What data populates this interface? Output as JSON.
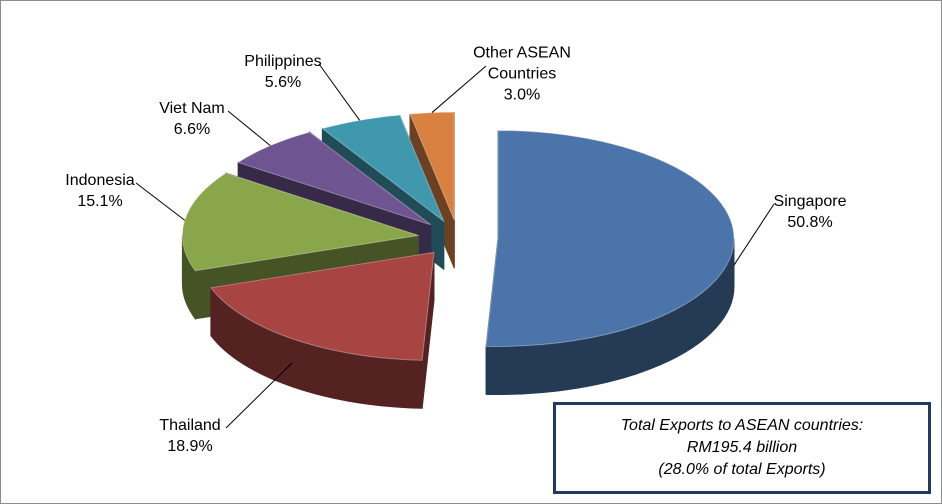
{
  "chart_data": {
    "type": "pie",
    "categories": [
      "Singapore",
      "Thailand",
      "Indonesia",
      "Viet Nam",
      "Philippines",
      "Other ASEAN Countries"
    ],
    "values": [
      50.8,
      18.9,
      15.1,
      6.6,
      5.6,
      3.0
    ],
    "value_labels": [
      "50.8%",
      "18.9%",
      "15.1%",
      "6.6%",
      "5.6%",
      "3.0%"
    ],
    "colors": [
      "#4a74aa",
      "#a84442",
      "#8aa64a",
      "#6e5490",
      "#3f98ae",
      "#d88140"
    ],
    "annotation": [
      "Total Exports to ASEAN countries:",
      "RM195.4 billion",
      "(28.0% of total Exports)"
    ]
  }
}
